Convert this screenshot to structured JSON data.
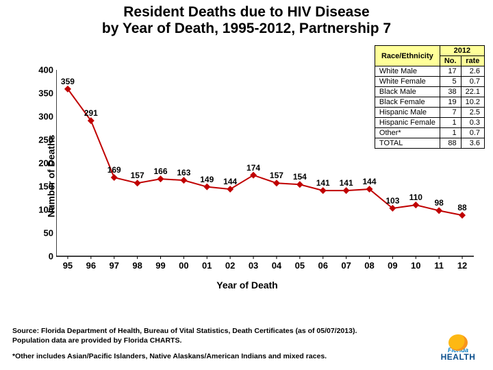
{
  "title": {
    "line1": "Resident Deaths due to HIV Disease",
    "line2": "by Year of Death, 1995-2012, Partnership 7"
  },
  "chart": {
    "type": "line",
    "ylabel": "Number of Deaths",
    "xlabel": "Year of Death",
    "y_ticks": [
      0,
      50,
      100,
      150,
      200,
      250,
      300,
      350,
      400
    ],
    "ylim": [
      0,
      400
    ],
    "x_categories": [
      "95",
      "96",
      "97",
      "98",
      "99",
      "00",
      "01",
      "02",
      "03",
      "04",
      "05",
      "06",
      "07",
      "08",
      "09",
      "10",
      "11",
      "12"
    ],
    "values": [
      359,
      291,
      169,
      157,
      166,
      163,
      149,
      144,
      174,
      157,
      154,
      141,
      141,
      144,
      103,
      110,
      98,
      88
    ],
    "line_color": "#c00000",
    "marker_color": "#c00000",
    "marker_size": 5,
    "line_width": 2,
    "axis_color": "#000000",
    "background": "#ffffff",
    "label_fontsize": 12,
    "tick_fontsize": 13
  },
  "table": {
    "head_col1": "Race/Ethnicity",
    "head_year": "2012",
    "sub_no": "No.",
    "sub_rate": "rate",
    "rows": [
      {
        "label": "White Male",
        "no": "17",
        "rate": "2.6"
      },
      {
        "label": "White Female",
        "no": "5",
        "rate": "0.7"
      },
      {
        "label": "Black Male",
        "no": "38",
        "rate": "22.1"
      },
      {
        "label": "Black Female",
        "no": "19",
        "rate": "10.2"
      },
      {
        "label": "Hispanic Male",
        "no": "7",
        "rate": "2.5"
      },
      {
        "label": "Hispanic Female",
        "no": "1",
        "rate": "0.3"
      },
      {
        "label": "Other*",
        "no": "1",
        "rate": "0.7"
      },
      {
        "label": "TOTAL",
        "no": "88",
        "rate": "3.6"
      }
    ],
    "header_bg": "#ffff99"
  },
  "footer": {
    "source_line1": "Source:  Florida Department of Health, Bureau of Vital Statistics, Death Certificates (as of 05/07/2013).",
    "source_line2": "Population data are provided by Florida CHARTS.",
    "note": "*Other includes Asian/Pacific Islanders, Native Alaskans/American Indians and mixed races."
  },
  "logo": {
    "line1": "Florida",
    "line2": "HEALTH"
  }
}
